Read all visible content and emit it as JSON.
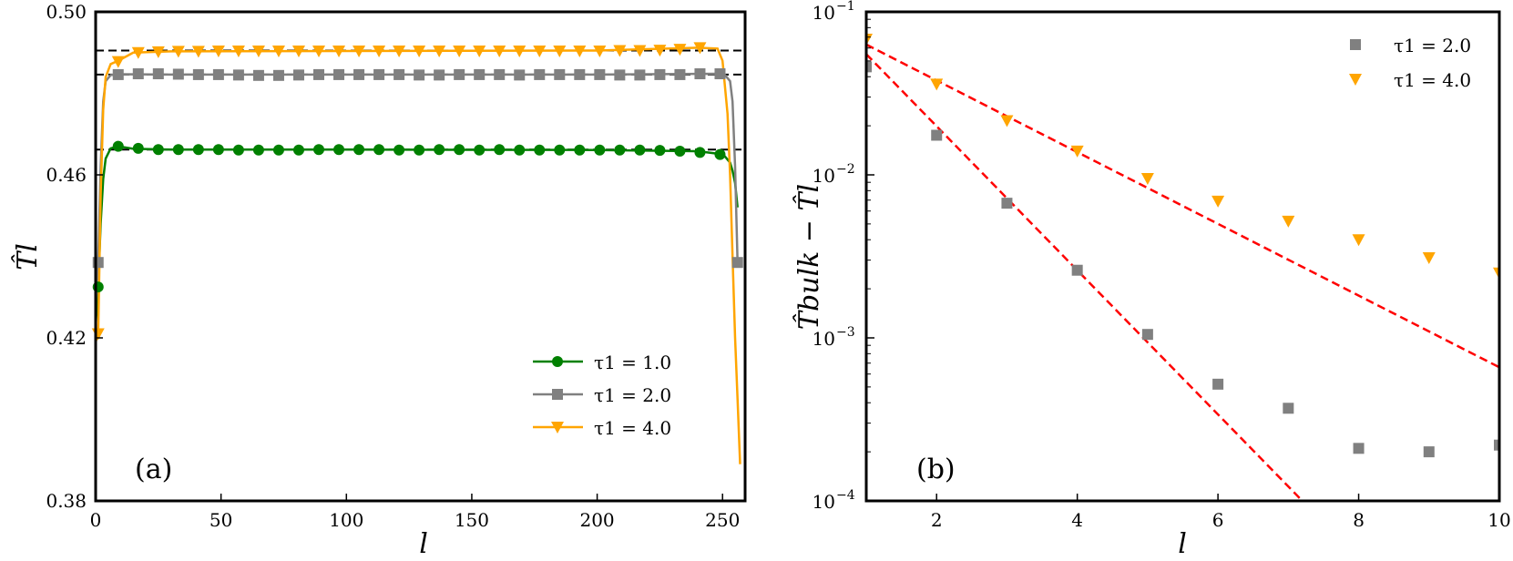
{
  "chart_data": [
    {
      "type": "line",
      "panel_label": "(a)",
      "xlabel": "l",
      "ylabel": "T̂l",
      "xlim": [
        0,
        259
      ],
      "ylim": [
        0.38,
        0.5
      ],
      "xticks": [
        "0",
        "50",
        "100",
        "150",
        "200",
        "250"
      ],
      "yticks": [
        "0.38",
        "0.42",
        "0.46",
        "0.50"
      ],
      "reference_lines": [
        0.4905,
        0.4846,
        0.4662
      ],
      "legend": [
        "τ1 = 1.0",
        "τ1 = 2.0",
        "τ1 = 4.0"
      ],
      "series": [
        {
          "name": "τ1 = 1.0",
          "color": "#008000",
          "marker": "circle",
          "x": [
            1,
            9,
            17,
            25,
            33,
            41,
            49,
            57,
            65,
            73,
            81,
            89,
            97,
            105,
            113,
            121,
            129,
            137,
            145,
            153,
            161,
            169,
            177,
            185,
            193,
            201,
            209,
            217,
            225,
            233,
            241,
            249
          ],
          "y": [
            0.4325,
            0.467,
            0.4665,
            0.4662,
            0.4662,
            0.4662,
            0.4662,
            0.4661,
            0.4661,
            0.4661,
            0.4661,
            0.4662,
            0.4662,
            0.4662,
            0.4662,
            0.4661,
            0.4661,
            0.4662,
            0.4662,
            0.4661,
            0.4662,
            0.4661,
            0.4661,
            0.4661,
            0.4661,
            0.4661,
            0.4661,
            0.4661,
            0.466,
            0.4658,
            0.4655,
            0.465
          ],
          "curve_x": [
            0,
            1,
            2,
            3,
            4,
            6,
            9,
            15,
            30,
            100,
            200,
            240,
            248,
            251,
            253,
            254,
            255,
            256
          ],
          "curve_y": [
            0.423,
            0.4325,
            0.448,
            0.459,
            0.464,
            0.4665,
            0.467,
            0.4664,
            0.4662,
            0.4662,
            0.4661,
            0.4658,
            0.4652,
            0.4645,
            0.463,
            0.461,
            0.458,
            0.452
          ]
        },
        {
          "name": "τ1 = 2.0",
          "color": "#808080",
          "marker": "square",
          "x": [
            1,
            9,
            17,
            25,
            33,
            41,
            49,
            57,
            65,
            73,
            81,
            89,
            97,
            105,
            113,
            121,
            129,
            137,
            145,
            153,
            161,
            169,
            177,
            185,
            193,
            201,
            209,
            217,
            225,
            233,
            241,
            249,
            256
          ],
          "y": [
            0.4385,
            0.4846,
            0.4848,
            0.4848,
            0.4847,
            0.4846,
            0.4846,
            0.4845,
            0.4844,
            0.4844,
            0.4845,
            0.4846,
            0.4846,
            0.4846,
            0.4846,
            0.4846,
            0.4845,
            0.4845,
            0.4846,
            0.4846,
            0.4846,
            0.4845,
            0.4846,
            0.4846,
            0.4846,
            0.4846,
            0.4845,
            0.4845,
            0.4846,
            0.4846,
            0.4848,
            0.4848,
            0.4385
          ],
          "curve_x": [
            0,
            1,
            2,
            3,
            4,
            6,
            10,
            30,
            100,
            200,
            248,
            251,
            253,
            254,
            255,
            256
          ],
          "curve_y": [
            0.428,
            0.4385,
            0.462,
            0.478,
            0.483,
            0.4845,
            0.4847,
            0.4846,
            0.4846,
            0.4846,
            0.4848,
            0.4845,
            0.483,
            0.478,
            0.462,
            0.4385
          ]
        },
        {
          "name": "τ1 = 4.0",
          "color": "#FFA500",
          "marker": "triangle-down",
          "x": [
            1,
            9,
            17,
            25,
            33,
            41,
            49,
            57,
            65,
            73,
            81,
            89,
            97,
            105,
            113,
            121,
            129,
            137,
            145,
            153,
            161,
            169,
            177,
            185,
            193,
            201,
            209,
            217,
            225,
            233,
            241
          ],
          "y": [
            0.421,
            0.4878,
            0.49,
            0.4902,
            0.4903,
            0.4903,
            0.4904,
            0.4904,
            0.4904,
            0.4904,
            0.4904,
            0.4904,
            0.4904,
            0.4904,
            0.4904,
            0.4904,
            0.4904,
            0.4904,
            0.4904,
            0.4904,
            0.4904,
            0.4904,
            0.4904,
            0.4904,
            0.4904,
            0.4904,
            0.4905,
            0.4905,
            0.4906,
            0.4908,
            0.4912
          ],
          "curve_x": [
            0,
            1,
            2,
            3,
            4,
            6,
            9,
            15,
            30,
            100,
            200,
            240,
            248,
            250,
            252,
            253,
            254,
            255,
            256,
            257
          ],
          "curve_y": [
            0.419,
            0.421,
            0.455,
            0.476,
            0.484,
            0.4872,
            0.488,
            0.49,
            0.4903,
            0.4904,
            0.4905,
            0.4912,
            0.491,
            0.488,
            0.475,
            0.46,
            0.44,
            0.42,
            0.405,
            0.389
          ]
        }
      ]
    },
    {
      "type": "scatter",
      "panel_label": "(b)",
      "xlabel": "l",
      "ylabel": "T̂bulk − T̂l",
      "yscale": "log",
      "xlim": [
        1,
        10
      ],
      "ylim": [
        0.0001,
        0.1
      ],
      "xticks": [
        "2",
        "4",
        "6",
        "8",
        "10"
      ],
      "ytick_mantissa": [
        "10",
        "10",
        "10",
        "10"
      ],
      "ytick_exponent": [
        "−1",
        "−2",
        "−3",
        "−4"
      ],
      "legend": [
        "τ1 = 2.0",
        "τ1 = 4.0"
      ],
      "series": [
        {
          "name": "τ1 = 2.0",
          "color": "#808080",
          "marker": "square",
          "x": [
            1,
            2,
            3,
            4,
            5,
            6,
            7,
            8,
            9,
            10
          ],
          "y": [
            0.046,
            0.0175,
            0.0067,
            0.0026,
            0.00105,
            0.00052,
            0.00037,
            0.00021,
            0.0002,
            0.00022
          ]
        },
        {
          "name": "τ1 = 4.0",
          "color": "#FFA500",
          "marker": "triangle-down",
          "x": [
            1,
            2,
            3,
            4,
            5,
            6,
            7,
            8,
            9,
            10
          ],
          "y": [
            0.068,
            0.036,
            0.0215,
            0.014,
            0.0095,
            0.0069,
            0.0052,
            0.004,
            0.0031,
            0.0025
          ]
        }
      ],
      "fits": [
        {
          "x": [
            1,
            7.2
          ],
          "y": [
            0.055,
            0.0001
          ],
          "color": "#ff0000",
          "style": "dashed"
        },
        {
          "x": [
            1,
            10
          ],
          "y": [
            0.063,
            0.00066
          ],
          "color": "#ff0000",
          "style": "dashed"
        }
      ]
    }
  ]
}
